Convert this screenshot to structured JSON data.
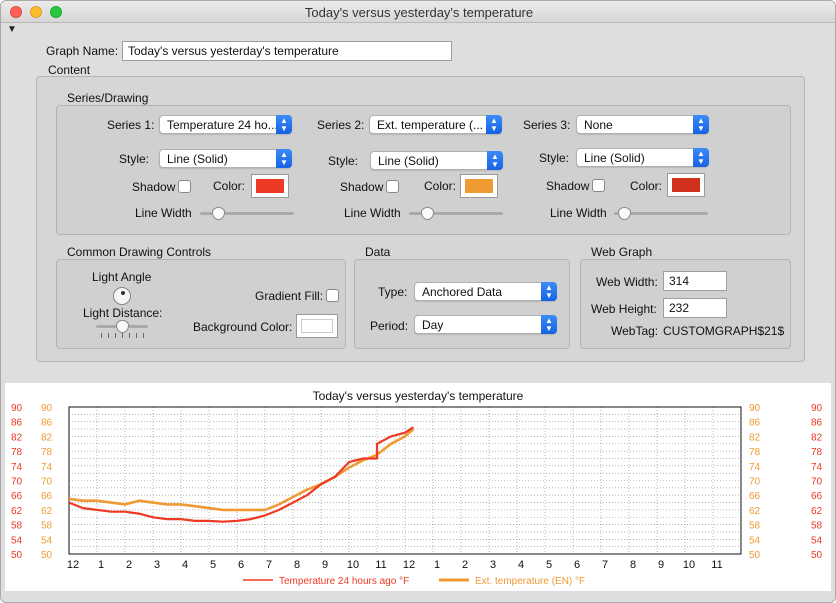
{
  "window": {
    "title": "Today's versus yesterday's temperature"
  },
  "graph_name": {
    "label": "Graph Name:",
    "value": "Today's versus yesterday's temperature"
  },
  "content": {
    "label": "Content"
  },
  "series_drawing": {
    "label": "Series/Drawing",
    "series": [
      {
        "series_label": "Series 1:",
        "series_value": "Temperature 24 ho...",
        "style_label": "Style:",
        "style_value": "Line (Solid)",
        "shadow_label": "Shadow",
        "color_label": "Color:",
        "color": "#ee3a24",
        "linewidth_label": "Line Width",
        "line_width": 0.15
      },
      {
        "series_label": "Series 2:",
        "series_value": "Ext. temperature (...",
        "style_label": "Style:",
        "style_value": "Line (Solid)",
        "shadow_label": "Shadow",
        "color_label": "Color:",
        "color": "#f09a33",
        "linewidth_label": "Line Width",
        "line_width": 0.15
      },
      {
        "series_label": "Series 3:",
        "series_value": "None",
        "style_label": "Style:",
        "style_value": "Line (Solid)",
        "shadow_label": "Shadow",
        "color_label": "Color:",
        "color": "#d0301e",
        "linewidth_label": "Line Width",
        "line_width": 0.05
      }
    ]
  },
  "common_drawing": {
    "label": "Common Drawing Controls",
    "light_angle_label": "Light Angle",
    "light_distance_label": "Light Distance:",
    "light_distance": 0.5,
    "gradient_fill_label": "Gradient Fill:",
    "background_color_label": "Background Color:",
    "background_color": "#ffffff"
  },
  "data_section": {
    "label": "Data",
    "type_label": "Type:",
    "type_value": "Anchored Data",
    "period_label": "Period:",
    "period_value": "Day"
  },
  "web_graph": {
    "label": "Web Graph",
    "width_label": "Web Width:",
    "width_value": "314",
    "height_label": "Web Height:",
    "height_value": "232",
    "webtag_label": "WebTag:",
    "webtag_value": "CUSTOMGRAPH$21$"
  },
  "chart_data": {
    "type": "line",
    "title": "Today's versus yesterday's temperature",
    "x_tick_labels": [
      "12",
      "1",
      "2",
      "3",
      "4",
      "5",
      "6",
      "7",
      "8",
      "9",
      "10",
      "11",
      "12",
      "1",
      "2",
      "3",
      "4",
      "5",
      "6",
      "7",
      "8",
      "9",
      "10",
      "11"
    ],
    "xlim": [
      0,
      24
    ],
    "ylim": [
      50,
      90
    ],
    "y_tick_labels": [
      "90",
      "86",
      "82",
      "78",
      "74",
      "70",
      "66",
      "62",
      "58",
      "54",
      "50"
    ],
    "grid": true,
    "legend_position": "bottom",
    "series": [
      {
        "name": "Temperature 24 hours ago °F",
        "color": "#ee3a24",
        "x": [
          0,
          0.5,
          1,
          1.5,
          2,
          2.5,
          3,
          3.5,
          4,
          4.5,
          5,
          5.5,
          6,
          6.5,
          7,
          7.5,
          8,
          8.5,
          9,
          9.5,
          10,
          10.5,
          11,
          11,
          11.5,
          12,
          12.3
        ],
        "y": [
          64,
          62.5,
          62,
          61.5,
          61.5,
          61,
          60,
          59.5,
          59.5,
          59,
          59,
          58.8,
          59,
          59.5,
          60.5,
          62,
          64,
          66,
          69,
          71,
          75,
          76,
          76,
          80,
          82,
          83,
          84.5
        ]
      },
      {
        "name": "Ext. temperature (EN) °F",
        "color": "#f09a33",
        "x": [
          0,
          0.5,
          1,
          1.5,
          2,
          2.5,
          3,
          3.5,
          4,
          4.5,
          5,
          5.5,
          6,
          6.5,
          7,
          7.5,
          8,
          8.5,
          9,
          9.5,
          10,
          10.5,
          11,
          11.5,
          12,
          12.3
        ],
        "y": [
          65,
          64.5,
          64.5,
          64,
          63.5,
          64.5,
          64,
          63.5,
          63.5,
          63,
          62.5,
          62,
          62,
          62,
          62,
          63.5,
          65.5,
          67.5,
          69,
          71,
          73.5,
          75.5,
          77,
          80,
          82,
          84
        ]
      }
    ]
  }
}
